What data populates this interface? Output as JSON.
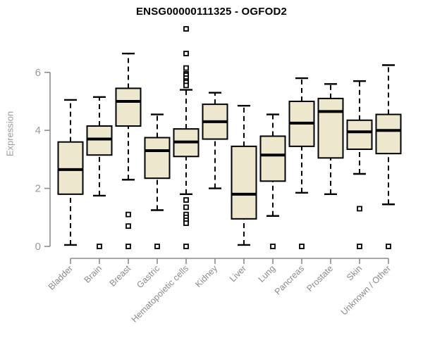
{
  "chart_data": {
    "type": "box",
    "title": "ENSG00000111325 - OGFOD2",
    "xlabel": "",
    "ylabel": "Expression",
    "y_ticks": [
      0,
      2,
      4,
      6
    ],
    "ylim": [
      -0.45,
      7.7
    ],
    "grid": false,
    "legend": false,
    "categories": [
      "Bladder",
      "Brain",
      "Breast",
      "Gastric",
      "Hematopoietic cells",
      "Kidney",
      "Liver",
      "Lung",
      "Pancreas",
      "Prostate",
      "Skin",
      "Unknown / Other"
    ],
    "series": [
      {
        "category": "Bladder",
        "low": 0.05,
        "q1": 1.8,
        "median": 2.65,
        "q3": 3.6,
        "high": 5.05,
        "outliers": []
      },
      {
        "category": "Brain",
        "low": 1.75,
        "q1": 3.15,
        "median": 3.7,
        "q3": 4.15,
        "high": 5.15,
        "outliers": [
          0
        ]
      },
      {
        "category": "Breast",
        "low": 2.3,
        "q1": 4.15,
        "median": 5.0,
        "q3": 5.45,
        "high": 6.65,
        "outliers": [
          1.1,
          0.7,
          0
        ]
      },
      {
        "category": "Gastric",
        "low": 1.25,
        "q1": 2.35,
        "median": 3.3,
        "q3": 3.75,
        "high": 4.55,
        "outliers": [
          0
        ]
      },
      {
        "category": "Hematopoietic cells",
        "low": 1.8,
        "q1": 3.1,
        "median": 3.6,
        "q3": 4.05,
        "high": 5.4,
        "outliers": [
          7.5,
          6.65,
          6.15,
          5.95,
          5.9,
          5.8,
          5.7,
          5.65,
          5.55,
          1.6,
          1.35,
          1.1,
          1.0,
          0.9,
          0.8,
          0
        ]
      },
      {
        "category": "Kidney",
        "low": 2.0,
        "q1": 3.7,
        "median": 4.3,
        "q3": 4.9,
        "high": 5.3,
        "outliers": []
      },
      {
        "category": "Liver",
        "low": 0.05,
        "q1": 0.95,
        "median": 1.8,
        "q3": 3.45,
        "high": 4.85,
        "outliers": []
      },
      {
        "category": "Lung",
        "low": 1.05,
        "q1": 2.25,
        "median": 3.15,
        "q3": 3.8,
        "high": 4.55,
        "outliers": [
          0
        ]
      },
      {
        "category": "Pancreas",
        "low": 1.85,
        "q1": 3.45,
        "median": 4.25,
        "q3": 5.0,
        "high": 5.8,
        "outliers": [
          0
        ]
      },
      {
        "category": "Prostate",
        "low": 1.8,
        "q1": 3.05,
        "median": 4.65,
        "q3": 5.1,
        "high": 5.6,
        "outliers": []
      },
      {
        "category": "Skin",
        "low": 2.5,
        "q1": 3.35,
        "median": 3.95,
        "q3": 4.35,
        "high": 5.7,
        "outliers": [
          1.3,
          0
        ]
      },
      {
        "category": "Unknown / Other",
        "low": 1.45,
        "q1": 3.2,
        "median": 4.0,
        "q3": 4.55,
        "high": 6.25,
        "outliers": [
          0
        ]
      }
    ],
    "colors": {
      "background": "#ffffff",
      "box_fill": "#ede7cd",
      "box_border": "#000000",
      "median": "#000000",
      "whisker": "#000000",
      "outlier_fill": "#ffffff",
      "axis": "#8c8c8c",
      "tick_label": "#9a9a9a",
      "category_label": "#8a8a8a",
      "title": "#000000"
    }
  }
}
